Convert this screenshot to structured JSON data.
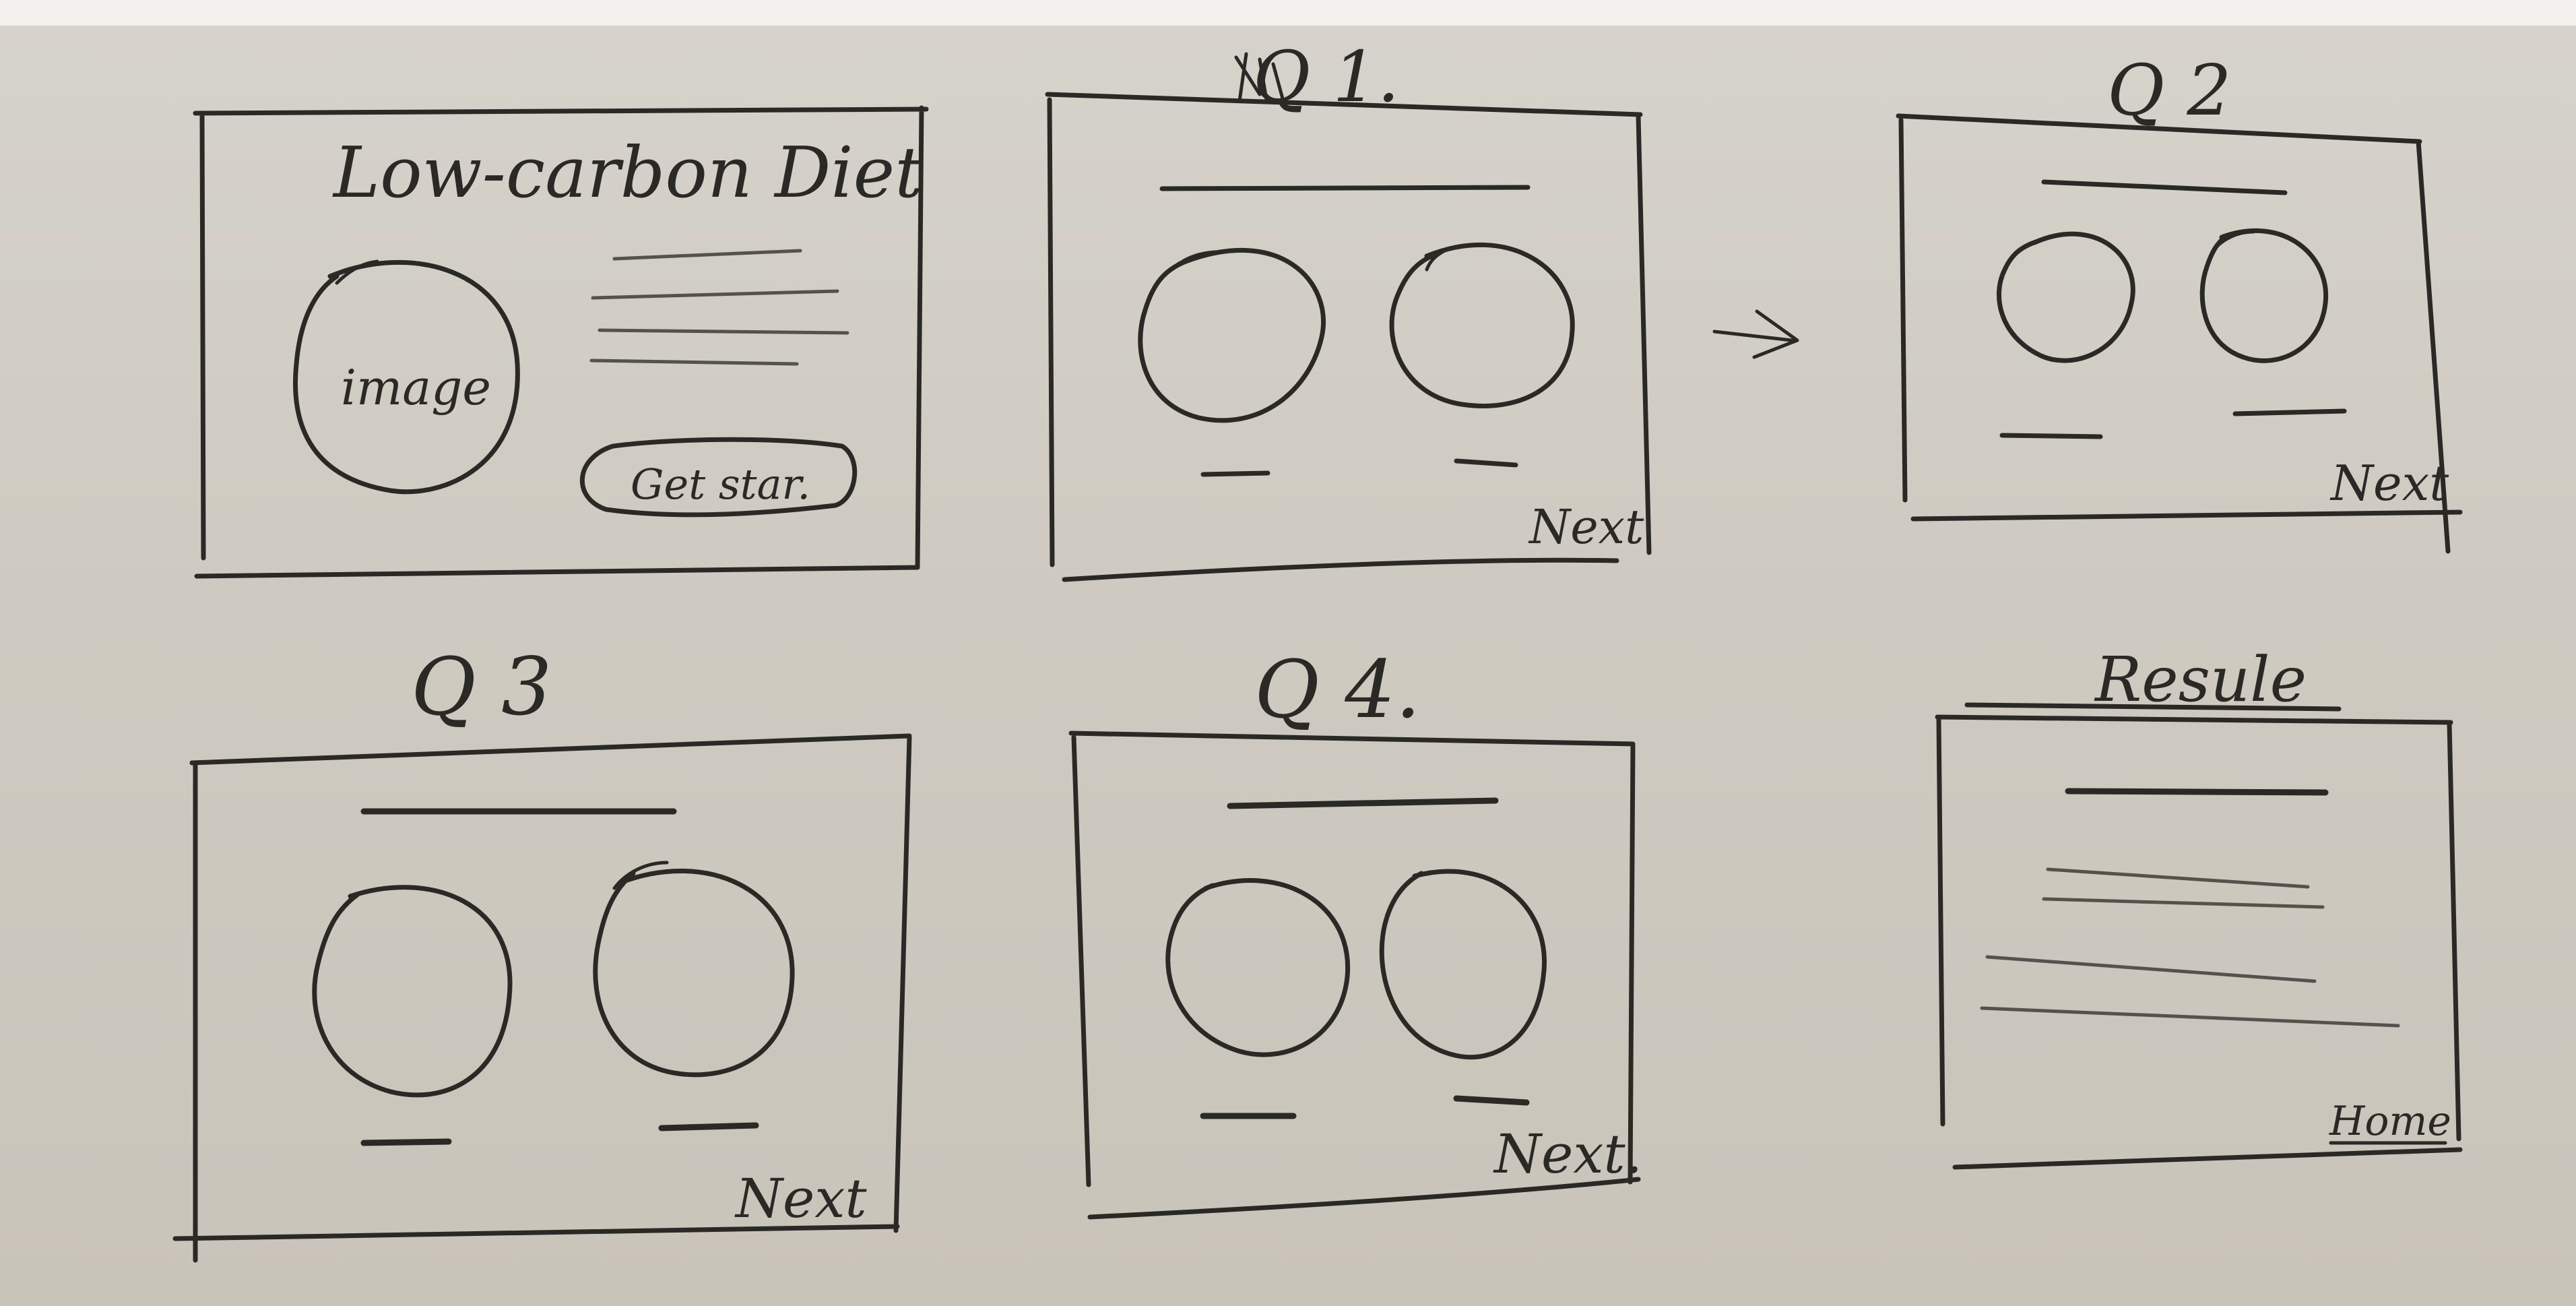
{
  "wireframe": {
    "frames": [
      {
        "id": "home",
        "title": "Low-carbon Diet",
        "image_label": "image",
        "button_label": "Get star."
      },
      {
        "id": "q1",
        "title": "Q 1.",
        "next_label": "Next"
      },
      {
        "id": "q2",
        "title": "Q 2",
        "next_label": "Next"
      },
      {
        "id": "q3",
        "title": "Q 3",
        "next_label": "Next"
      },
      {
        "id": "q4",
        "title": "Q 4.",
        "next_label": "Next."
      },
      {
        "id": "result",
        "title": "Resule",
        "home_label": "Home"
      }
    ],
    "flow_arrow": "→"
  },
  "colors": {
    "paper": "#d6d3cc",
    "ink": "#2a2926",
    "pencil": "#55524d"
  }
}
